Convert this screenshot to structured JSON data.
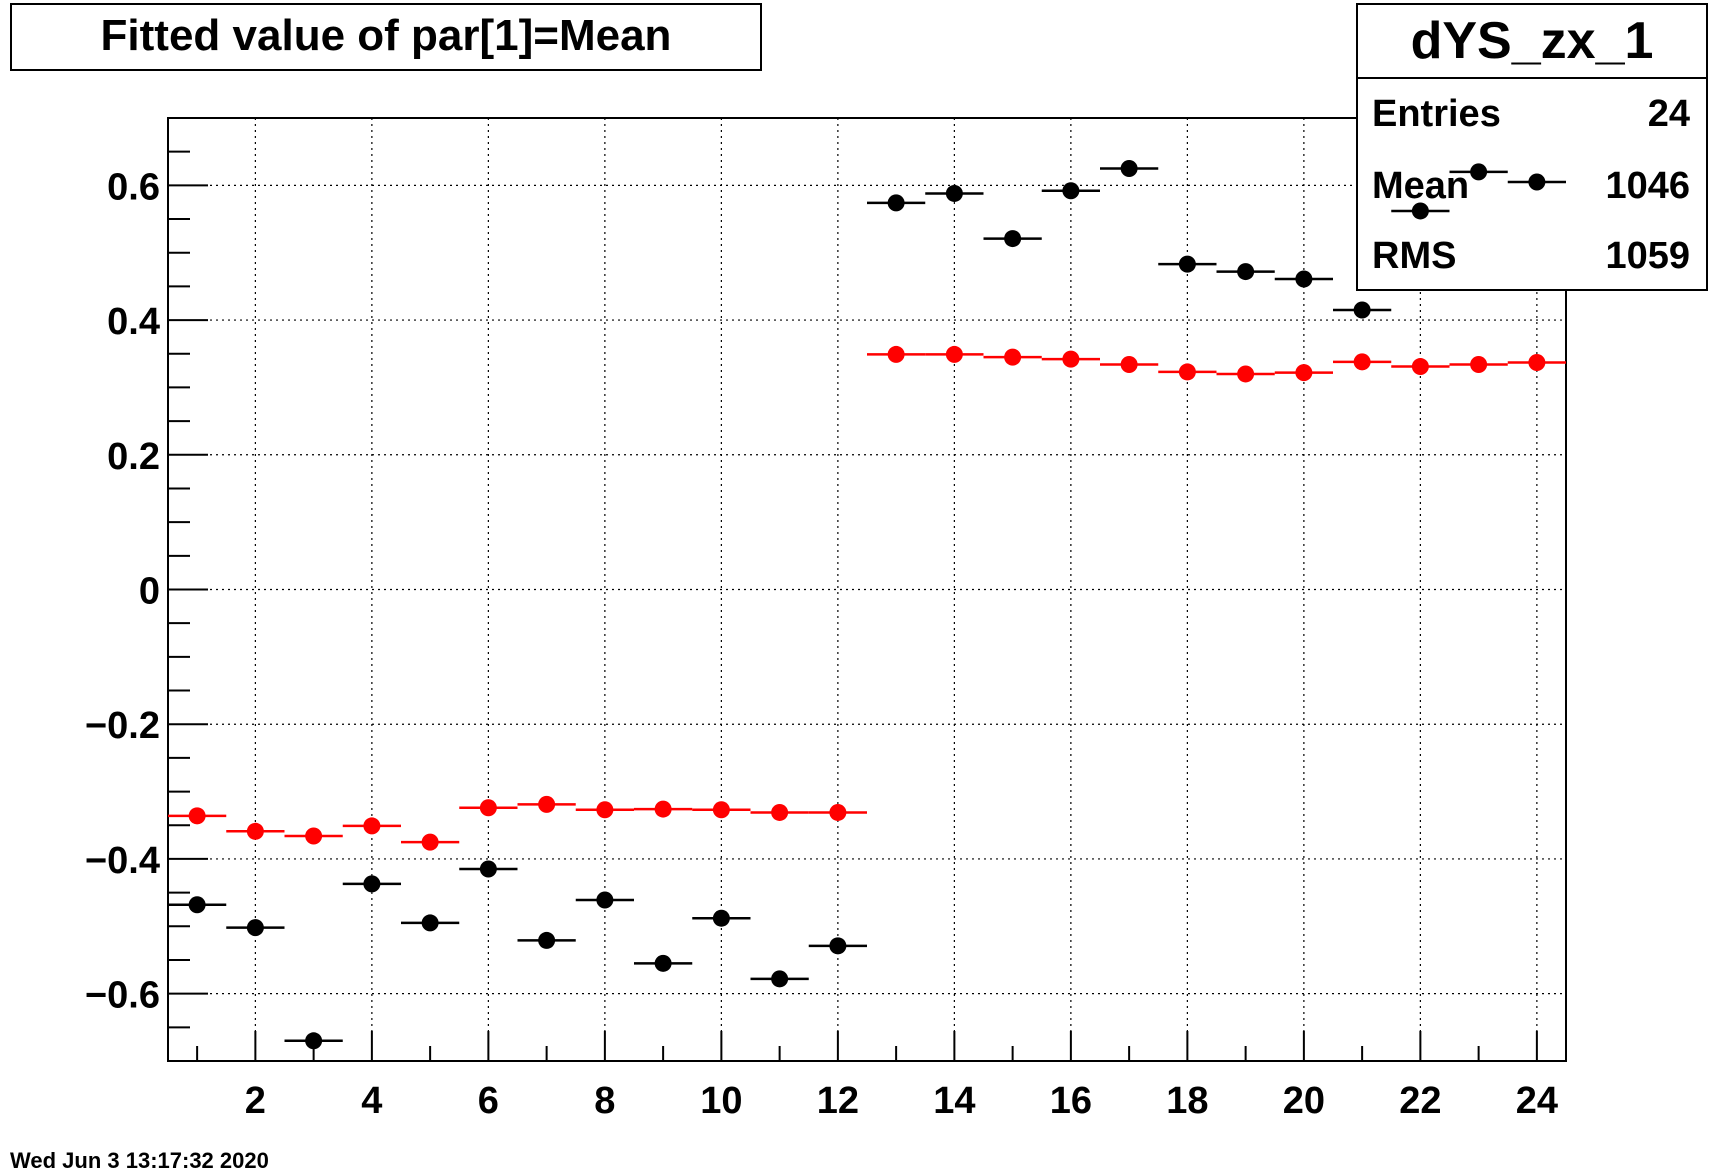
{
  "chart_data": {
    "type": "scatter",
    "title": "Fitted value of par[1]=Mean",
    "xlabel": "",
    "ylabel": "",
    "xlim": [
      0.5,
      24.5
    ],
    "ylim": [
      -0.7,
      0.7
    ],
    "x_ticks": [
      2,
      4,
      6,
      8,
      10,
      12,
      14,
      16,
      18,
      20,
      22,
      24
    ],
    "y_ticks": [
      -0.6,
      -0.4,
      -0.2,
      0,
      0.2,
      0.4,
      0.6
    ],
    "y_tick_labels": [
      "−0.6",
      "−0.4",
      "−0.2",
      "0",
      "0.2",
      "0.4",
      "0.6"
    ],
    "grid": true,
    "series": [
      {
        "color": "#000000",
        "x": [
          1,
          2,
          3,
          4,
          5,
          6,
          7,
          8,
          9,
          10,
          11,
          12,
          13,
          14,
          15,
          16,
          17,
          18,
          19,
          20,
          21,
          22,
          23,
          24
        ],
        "values": [
          -0.468,
          -0.502,
          -0.67,
          -0.437,
          -0.495,
          -0.415,
          -0.521,
          -0.461,
          -0.555,
          -0.488,
          -0.578,
          -0.529,
          0.574,
          0.588,
          0.521,
          0.592,
          0.625,
          0.483,
          0.472,
          0.461,
          0.415,
          0.562,
          0.62,
          0.605
        ]
      },
      {
        "color": "#ff0000",
        "x": [
          1,
          2,
          3,
          4,
          5,
          6,
          7,
          8,
          9,
          10,
          11,
          12,
          13,
          14,
          15,
          16,
          17,
          18,
          19,
          20,
          21,
          22,
          23,
          24
        ],
        "values": [
          -0.336,
          -0.359,
          -0.366,
          -0.351,
          -0.375,
          -0.324,
          -0.319,
          -0.327,
          -0.326,
          -0.327,
          -0.331,
          -0.331,
          0.349,
          0.349,
          0.345,
          0.342,
          0.334,
          0.323,
          0.32,
          0.322,
          0.338,
          0.331,
          0.334,
          0.337
        ]
      }
    ],
    "stats_box": {
      "title": "dYS_zx_1",
      "rows": [
        {
          "label": "Entries",
          "value": "24"
        },
        {
          "label": "Mean",
          "value": "1046"
        },
        {
          "label": "RMS",
          "value": "1059"
        }
      ]
    },
    "timestamp": "Wed Jun  3 13:17:32 2020"
  }
}
